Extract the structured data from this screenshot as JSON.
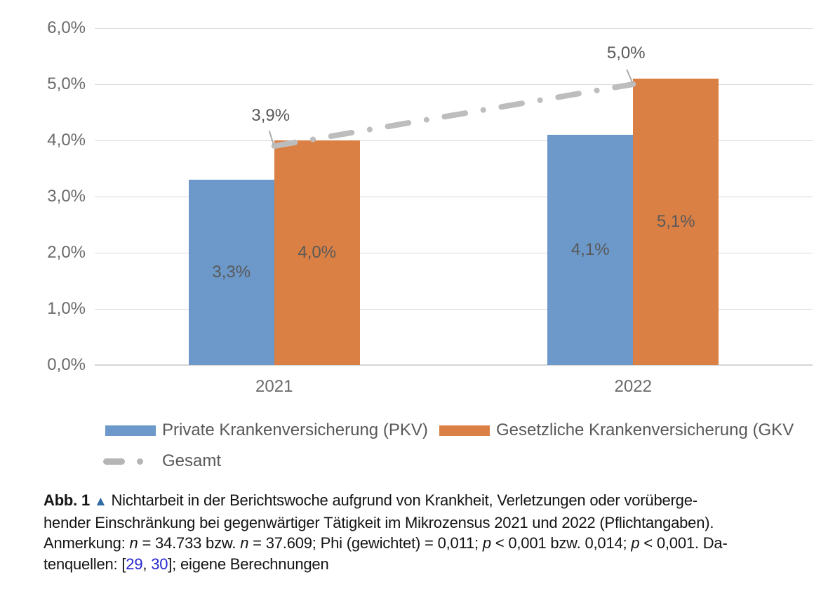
{
  "chart_data": {
    "type": "bar",
    "categories": [
      "2021",
      "2022"
    ],
    "series": [
      {
        "name": "Private Krankenversicherung (PKV)",
        "kind": "bar",
        "color": "#6c99ca",
        "values": [
          3.3,
          4.1
        ],
        "labels": [
          "3,3%",
          "4,1%"
        ]
      },
      {
        "name": "Gesetzliche Krankenversicherung (GKV",
        "kind": "bar",
        "color": "#db8044",
        "values": [
          4.0,
          5.1
        ],
        "labels": [
          "4,0%",
          "5,1%"
        ]
      },
      {
        "name": "Gesamt",
        "kind": "line",
        "color": "#bdbdbd",
        "values": [
          3.9,
          5.0
        ],
        "labels": [
          "3,9%",
          "5,0%"
        ]
      }
    ],
    "title": "",
    "xlabel": "",
    "ylabel": "",
    "ylim": [
      0,
      6
    ],
    "ytick_step": 1,
    "ytick_labels": [
      "0,0%",
      "1,0%",
      "2,0%",
      "3,0%",
      "4,0%",
      "5,0%",
      "6,0%"
    ],
    "grid": true,
    "legend_position": "bottom"
  },
  "colors": {
    "gridline": "#d9d9d9",
    "axis_text": "#6b6b6b",
    "data_label": "#595959",
    "citation_link": "#2626ce",
    "caption_triangle": "#2f6ba4"
  },
  "caption": {
    "lines": [
      [
        {
          "t": "Abb. 1",
          "s": "b"
        },
        {
          "t": " "
        },
        {
          "t": "▲",
          "s": "tri"
        },
        {
          "t": " Nichtarbeit in der Berichtswoche aufgrund von Krankheit, Verletzungen oder vorüberge-"
        }
      ],
      [
        {
          "t": "hender Einschränkung bei gegenwärtiger Tätigkeit im Mikrozensus 2021 und 2022 (Pflichtangaben)."
        }
      ],
      [
        {
          "t": "Anmerkung: "
        },
        {
          "t": "n",
          "s": "i"
        },
        {
          "t": " = 34.733 bzw. "
        },
        {
          "t": "n",
          "s": "i"
        },
        {
          "t": " = 37.609; Phi (gewichtet) = 0,011; "
        },
        {
          "t": "p",
          "s": "i"
        },
        {
          "t": " < 0,001 bzw. 0,014; "
        },
        {
          "t": "p",
          "s": "i"
        },
        {
          "t": " < 0,001. Da-"
        }
      ],
      [
        {
          "t": "tenquellen: ["
        },
        {
          "t": "29",
          "s": "link"
        },
        {
          "t": ", "
        },
        {
          "t": "30",
          "s": "link"
        },
        {
          "t": "]; eigene Berechnungen"
        }
      ]
    ]
  }
}
